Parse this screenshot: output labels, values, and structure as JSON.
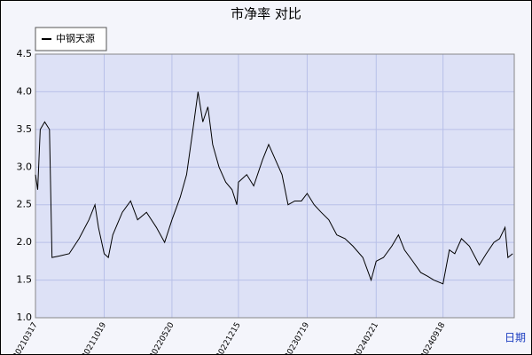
{
  "chart_data": {
    "type": "line",
    "title": "市净率  对比",
    "x_label": "日期",
    "x": [
      "20210317",
      "20210324",
      "20210401",
      "20210415",
      "20210430",
      "20210508",
      "20210601",
      "20210701",
      "20210801",
      "20210901",
      "20210920",
      "20211001",
      "20211019",
      "20211101",
      "20211115",
      "20211215",
      "20220110",
      "20220201",
      "20220301",
      "20220401",
      "20220427",
      "20220520",
      "20220615",
      "20220705",
      "20220725",
      "20220810",
      "20220825",
      "20220910",
      "20220925",
      "20221015",
      "20221105",
      "20221125",
      "20221210",
      "20221215",
      "20230110",
      "20230201",
      "20230301",
      "20230320",
      "20230410",
      "20230501",
      "20230520",
      "20230610",
      "20230701",
      "20230719",
      "20230810",
      "20230901",
      "20230925",
      "20231020",
      "20231115",
      "20231210",
      "20240110",
      "20240205",
      "20240221",
      "20240315",
      "20240410",
      "20240501",
      "20240520",
      "20240615",
      "20240710",
      "20240801",
      "20240820",
      "20240918",
      "20241008",
      "20241025",
      "20241115",
      "20241210",
      "20250110",
      "20250201",
      "20250225",
      "20250315",
      "20250401",
      "20250410",
      "20250425"
    ],
    "series": [
      {
        "name": "中钢天源",
        "color": "#000000",
        "values": [
          2.9,
          2.7,
          3.5,
          3.6,
          3.5,
          1.8,
          1.82,
          1.85,
          2.05,
          2.3,
          2.5,
          2.2,
          1.85,
          1.8,
          2.1,
          2.4,
          2.55,
          2.3,
          2.4,
          2.2,
          2.0,
          2.3,
          2.6,
          2.9,
          3.5,
          4.0,
          3.6,
          3.8,
          3.3,
          3.0,
          2.8,
          2.7,
          2.5,
          2.8,
          2.9,
          2.75,
          3.1,
          3.3,
          3.1,
          2.9,
          2.5,
          2.55,
          2.55,
          2.65,
          2.5,
          2.4,
          2.3,
          2.1,
          2.05,
          1.95,
          1.8,
          1.5,
          1.75,
          1.8,
          1.95,
          2.1,
          1.9,
          1.75,
          1.6,
          1.55,
          1.5,
          1.45,
          1.9,
          1.85,
          2.05,
          1.95,
          1.7,
          1.85,
          2.0,
          2.05,
          2.2,
          1.8,
          1.85
        ]
      }
    ],
    "xlim": [
      "20210317",
      "20250430"
    ],
    "xticks": [
      "20210317",
      "20211019",
      "20220520",
      "20221215",
      "20230719",
      "20240221",
      "20240918"
    ],
    "ylim": [
      1,
      4.5
    ],
    "yticks": [
      {
        "value": 1,
        "label": "1.0"
      },
      1.5,
      {
        "value": 2,
        "label": "2.0"
      },
      2.5,
      {
        "value": 3,
        "label": "3.0"
      },
      3.5,
      {
        "value": 4,
        "label": "4.0"
      },
      4.5
    ],
    "grid": true
  }
}
